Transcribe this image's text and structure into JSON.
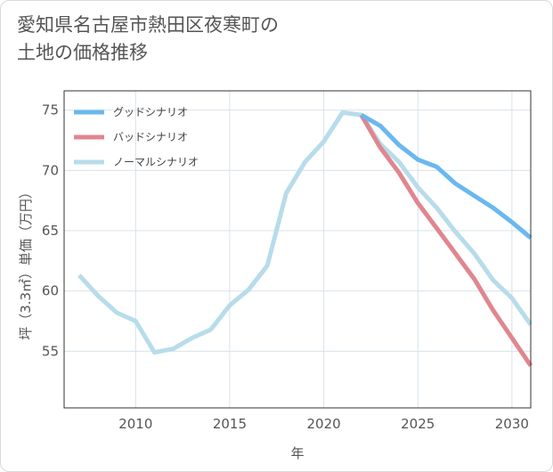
{
  "title_line1": "愛知県名古屋市熱田区夜寒町の",
  "title_line2": "土地の価格推移",
  "chart_data": {
    "type": "line",
    "xlabel": "年",
    "ylabel": "坪（3.3㎡）単価（万円）",
    "xlim": [
      2006.2,
      2031
    ],
    "ylim": [
      50.3,
      76.6
    ],
    "x_ticks": [
      2010,
      2015,
      2020,
      2025,
      2030
    ],
    "y_ticks": [
      55,
      60,
      65,
      70,
      75
    ],
    "grid": true,
    "legend_position": "top-left",
    "series": [
      {
        "name": "グッドシナリオ",
        "color": "#6ab8ee",
        "x": [
          2022,
          2023,
          2024,
          2025,
          2026,
          2027,
          2028,
          2029,
          2030,
          2031
        ],
        "y": [
          74.6,
          73.7,
          72.1,
          70.9,
          70.3,
          68.9,
          67.9,
          66.9,
          65.7,
          64.4
        ]
      },
      {
        "name": "バッドシナリオ",
        "color": "#e0868f",
        "x": [
          2022,
          2023,
          2024,
          2025,
          2026,
          2027,
          2028,
          2029,
          2030,
          2031
        ],
        "y": [
          74.6,
          71.9,
          69.8,
          67.3,
          65.2,
          63.1,
          61.0,
          58.4,
          56.1,
          53.8
        ]
      },
      {
        "name": "ノーマルシナリオ",
        "color": "#b7dcea",
        "x": [
          2007,
          2008,
          2009,
          2010,
          2011,
          2012,
          2013,
          2014,
          2015,
          2016,
          2017,
          2018,
          2019,
          2020,
          2021,
          2022,
          2023,
          2024,
          2025,
          2026,
          2027,
          2028,
          2029,
          2030,
          2031
        ],
        "y": [
          61.3,
          59.6,
          58.2,
          57.5,
          54.9,
          55.2,
          56.1,
          56.8,
          58.8,
          60.1,
          62.1,
          68.1,
          70.7,
          72.4,
          74.8,
          74.6,
          72.2,
          70.7,
          68.6,
          66.9,
          64.9,
          63.1,
          60.9,
          59.4,
          57.2
        ]
      }
    ]
  }
}
